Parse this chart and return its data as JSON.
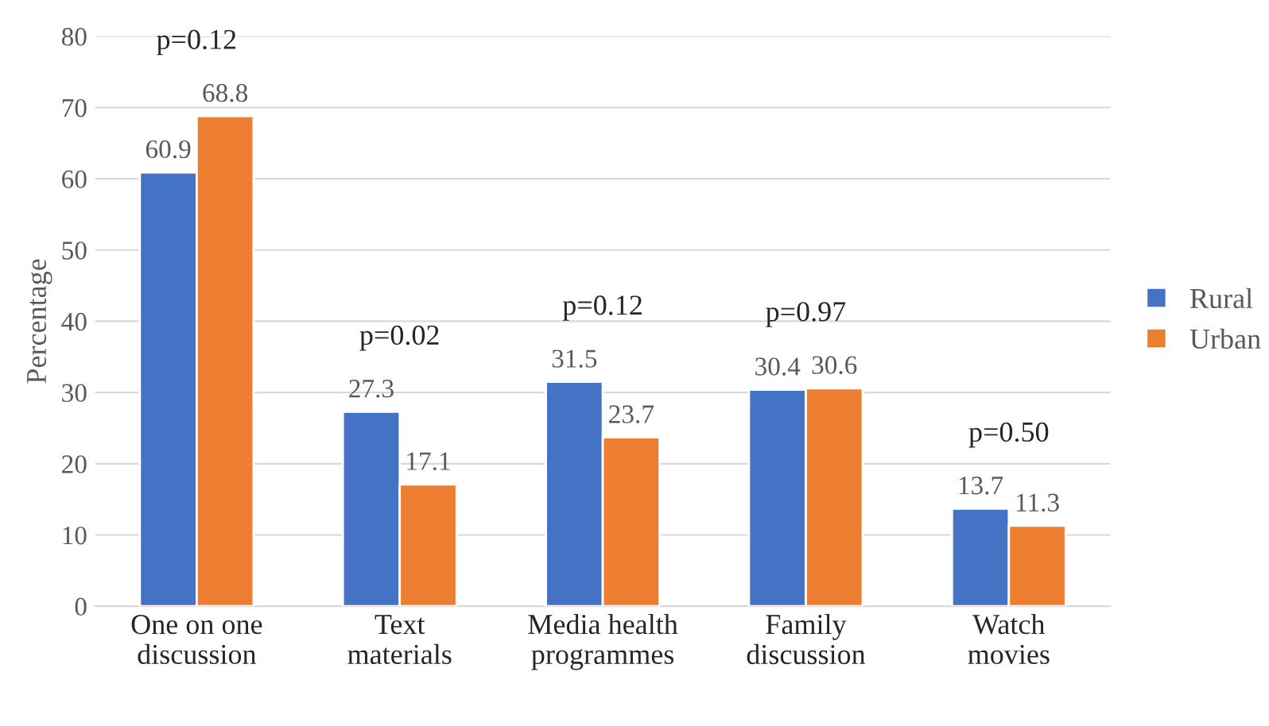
{
  "chart_data": {
    "type": "bar",
    "ylabel": "Percentage",
    "categories": [
      "One on one\ndiscussion",
      "Text\nmaterials",
      "Media health\nprogrammes",
      "Family\ndiscussion",
      "Watch\nmovies"
    ],
    "series": [
      {
        "name": "Rural",
        "color": "#4472c4",
        "values": [
          60.9,
          27.3,
          31.5,
          30.4,
          13.7
        ]
      },
      {
        "name": "Urban",
        "color": "#ed7d31",
        "values": [
          68.8,
          17.1,
          23.7,
          30.6,
          11.3
        ]
      }
    ],
    "ylim": [
      0,
      80
    ],
    "yticks": [
      0,
      10,
      20,
      30,
      40,
      50,
      60,
      70,
      80
    ],
    "grid": "y",
    "legend": "right",
    "data_labels": true,
    "annotations": [
      "p=0.12",
      "p=0.02",
      "p=0.12",
      "p=0.97",
      "p=0.50"
    ]
  }
}
